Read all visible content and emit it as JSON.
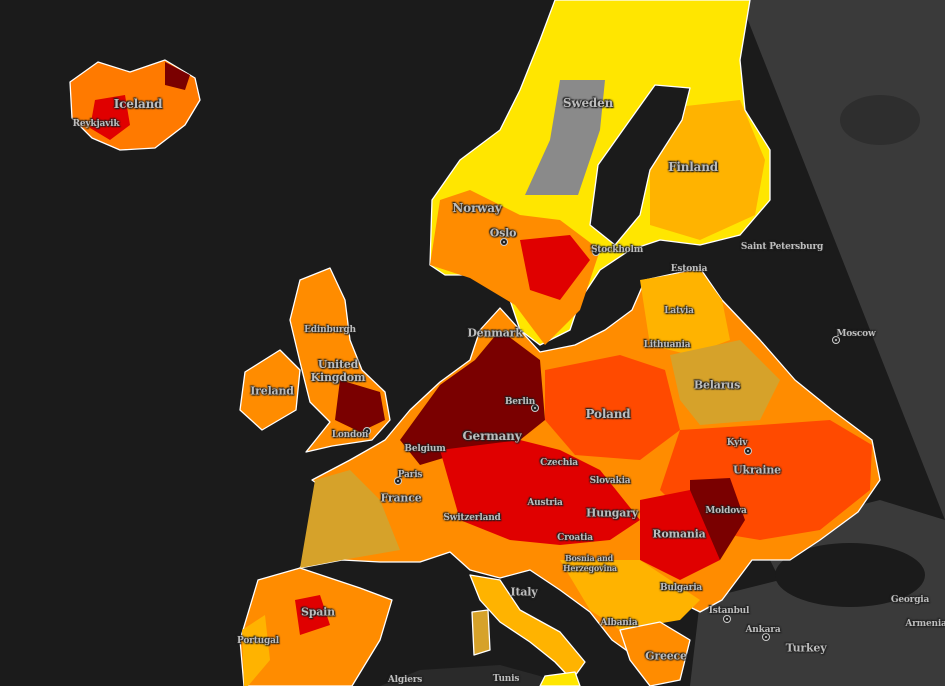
{
  "map": {
    "colors": {
      "sea": "#1b1b1b",
      "basemap_land": "#3a3a3a",
      "extreme": "#7a0000",
      "very_high": "#e00000",
      "high": "#ff4a00",
      "elevated": "#ff8c00",
      "moderate": "#ffb300",
      "low": "#ffe600",
      "mustard": "#d6a22a",
      "no_data": "#8a8a8a",
      "borders": "#ffffff"
    },
    "labels": [
      {
        "text": "Iceland",
        "type": "country"
      },
      {
        "text": "Reykjavik",
        "type": "city"
      },
      {
        "text": "Sweden",
        "type": "country"
      },
      {
        "text": "Finland",
        "type": "country"
      },
      {
        "text": "Norway",
        "type": "country"
      },
      {
        "text": "Oslo",
        "type": "city"
      },
      {
        "text": "Stockholm",
        "type": "city"
      },
      {
        "text": "Saint Petersburg",
        "type": "city"
      },
      {
        "text": "Estonia",
        "type": "country"
      },
      {
        "text": "Latvia",
        "type": "country"
      },
      {
        "text": "Lithuania",
        "type": "country"
      },
      {
        "text": "Denmark",
        "type": "country"
      },
      {
        "text": "Edinburgh",
        "type": "city"
      },
      {
        "text": "United Kingdom",
        "type": "country"
      },
      {
        "text": "Ireland",
        "type": "country"
      },
      {
        "text": "Moscow",
        "type": "city"
      },
      {
        "text": "Belarus",
        "type": "country"
      },
      {
        "text": "Berlin",
        "type": "city"
      },
      {
        "text": "Poland",
        "type": "country"
      },
      {
        "text": "Germany",
        "type": "country"
      },
      {
        "text": "London",
        "type": "city"
      },
      {
        "text": "Belgium",
        "type": "country"
      },
      {
        "text": "Kyiv",
        "type": "city"
      },
      {
        "text": "Ukraine",
        "type": "country"
      },
      {
        "text": "Czechia",
        "type": "country"
      },
      {
        "text": "Slovakia",
        "type": "country"
      },
      {
        "text": "Paris",
        "type": "city"
      },
      {
        "text": "France",
        "type": "country"
      },
      {
        "text": "Austria",
        "type": "country"
      },
      {
        "text": "Hungary",
        "type": "country"
      },
      {
        "text": "Moldova",
        "type": "country"
      },
      {
        "text": "Switzerland",
        "type": "country"
      },
      {
        "text": "Romania",
        "type": "country"
      },
      {
        "text": "Croatia",
        "type": "country"
      },
      {
        "text": "Bosnia and Herzegovina",
        "type": "country"
      },
      {
        "text": "Bulgaria",
        "type": "country"
      },
      {
        "text": "Spain",
        "type": "country"
      },
      {
        "text": "Italy",
        "type": "country"
      },
      {
        "text": "Istanbul",
        "type": "city"
      },
      {
        "text": "Georgia",
        "type": "country"
      },
      {
        "text": "Ankara",
        "type": "city"
      },
      {
        "text": "Turkey",
        "type": "country"
      },
      {
        "text": "Armenia",
        "type": "country"
      },
      {
        "text": "Portugal",
        "type": "country"
      },
      {
        "text": "Albania",
        "type": "country"
      },
      {
        "text": "Greece",
        "type": "country"
      },
      {
        "text": "Algiers",
        "type": "city"
      },
      {
        "text": "Tunis",
        "type": "city"
      }
    ]
  }
}
